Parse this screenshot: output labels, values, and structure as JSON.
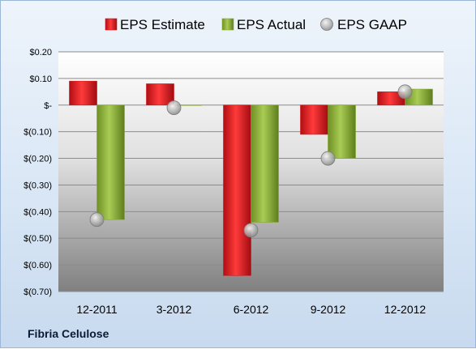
{
  "company": "Fibria Celulose",
  "chart_data": {
    "type": "bar",
    "categories": [
      "12-2011",
      "3-2012",
      "6-2012",
      "9-2012",
      "12-2012"
    ],
    "series": [
      {
        "name": "EPS Estimate",
        "values": [
          0.09,
          0.08,
          -0.64,
          -0.11,
          0.05
        ],
        "color": "#d4141c",
        "mark": "bar"
      },
      {
        "name": "EPS Actual",
        "values": [
          -0.43,
          0.0,
          -0.44,
          -0.2,
          0.06
        ],
        "color": "#86a733",
        "mark": "bar"
      },
      {
        "name": "EPS GAAP",
        "values": [
          -0.43,
          -0.01,
          -0.47,
          -0.2,
          0.05
        ],
        "color": "#a9a9a9",
        "mark": "marker"
      }
    ],
    "ylim": [
      -0.7,
      0.2
    ],
    "yticks": [
      0.2,
      0.1,
      0.0,
      -0.1,
      -0.2,
      -0.3,
      -0.4,
      -0.5,
      -0.6,
      -0.7
    ],
    "ytick_labels": [
      "$0.20",
      "$0.10",
      "$-",
      "$(0.10)",
      "$(0.20)",
      "$(0.30)",
      "$(0.40)",
      "$(0.50)",
      "$(0.60)",
      "$(0.70)"
    ],
    "grid": true,
    "legend_position": "top"
  }
}
